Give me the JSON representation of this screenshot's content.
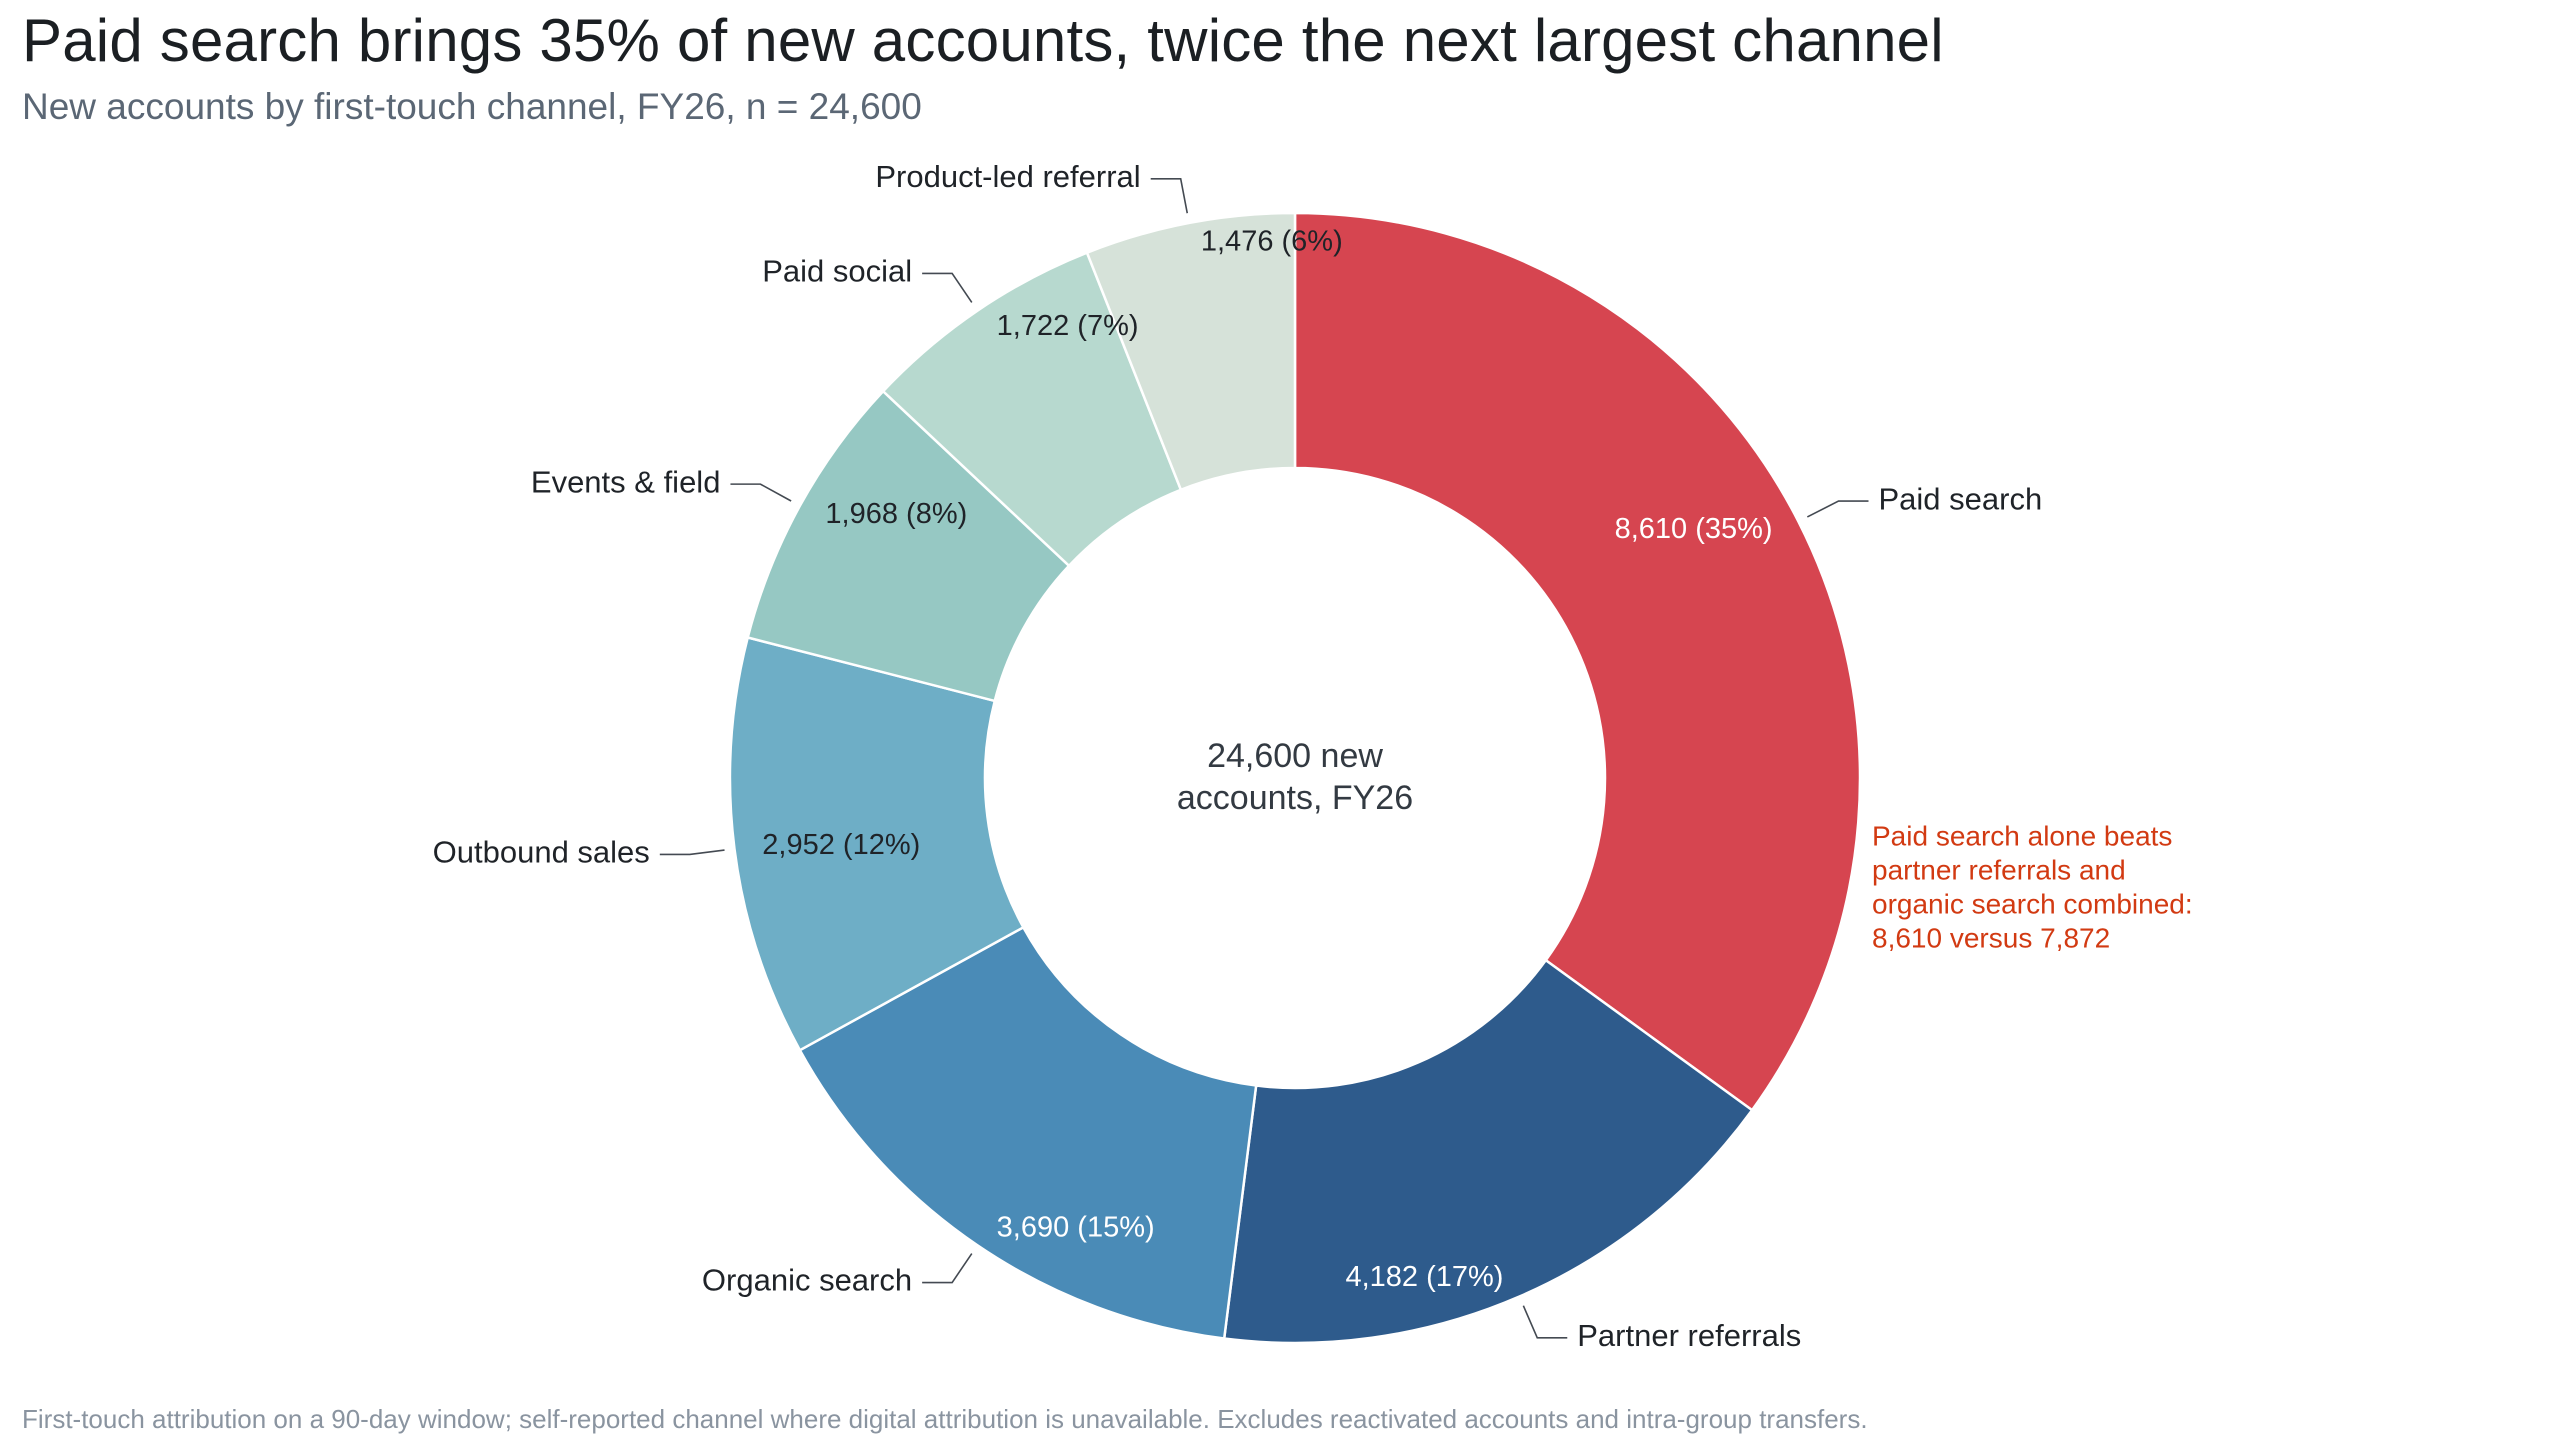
{
  "title": "Paid search brings 35% of new accounts, twice the next largest channel",
  "subtitle": "New accounts by first-touch channel, FY26, n = 24,600",
  "footnote": "First-touch attribution on a 90-day window; self-reported channel where digital attribution is unavailable. Excludes reactivated accounts and intra-group transfers.",
  "chart_data": {
    "type": "pie",
    "variant": "donut",
    "title": "Paid search brings 35% of new accounts, twice the next largest channel",
    "subtitle": "New accounts by first-touch channel, FY26, n = 24,600",
    "total": 24600,
    "center_label": [
      "24,600 new",
      "accounts, FY26"
    ],
    "slices": [
      {
        "label": "Paid search",
        "value": 8610,
        "value_label": "8,610 (35%)",
        "color": "#d64550",
        "text_color": "#ffffff"
      },
      {
        "label": "Partner referrals",
        "value": 4182,
        "value_label": "4,182 (17%)",
        "color": "#2e5b8c",
        "text_color": "#ffffff"
      },
      {
        "label": "Organic search",
        "value": 3690,
        "value_label": "3,690 (15%)",
        "color": "#4a8bb7",
        "text_color": "#ffffff"
      },
      {
        "label": "Outbound sales",
        "value": 2952,
        "value_label": "2,952 (12%)",
        "color": "#6eaec6",
        "text_color": "#1f2328"
      },
      {
        "label": "Events & field",
        "value": 1968,
        "value_label": "1,968 (8%)",
        "color": "#96c8c3",
        "text_color": "#1f2328"
      },
      {
        "label": "Paid social",
        "value": 1722,
        "value_label": "1,722 (7%)",
        "color": "#b7d9cf",
        "text_color": "#1f2328"
      },
      {
        "label": "Product-led referral",
        "value": 1476,
        "value_label": "1,476 (6%)",
        "color": "#d6e2d9",
        "text_color": "#1f2328"
      }
    ],
    "annotation": {
      "text": [
        "Paid search alone beats",
        "partner referrals and",
        "organic search combined:",
        "8,610 versus 7,872"
      ],
      "color": "#d23a12"
    }
  }
}
